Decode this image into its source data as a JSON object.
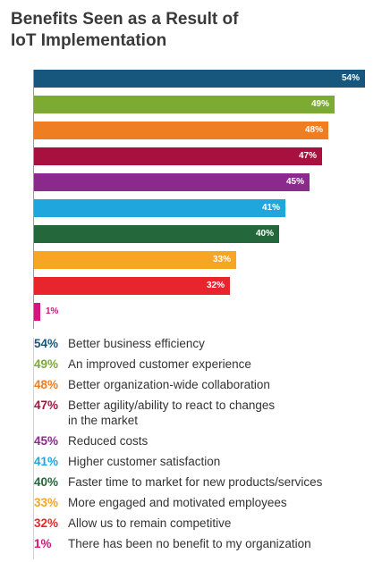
{
  "chart_data": {
    "type": "bar",
    "orientation": "horizontal",
    "title": "Benefits Seen as a Result of IoT Implementation",
    "title_lines": [
      "Benefits Seen as a Result of",
      "IoT Implementation"
    ],
    "xlim": [
      0,
      54
    ],
    "grid": false,
    "legend": "bottom",
    "categories": [
      "Better business efficiency",
      "An improved customer experience",
      "Better organization-wide collaboration",
      "Better agility/ability to react to changes in the market",
      "Reduced costs",
      "Higher customer satisfaction",
      "Faster time to market for new products/services",
      "More engaged and motivated employees",
      "Allow us to remain competitive",
      "There has been no benefit to my organization"
    ],
    "values": [
      54,
      49,
      48,
      47,
      45,
      41,
      40,
      33,
      32,
      1
    ],
    "labels": [
      "54%",
      "49%",
      "48%",
      "47%",
      "45%",
      "41%",
      "40%",
      "33%",
      "32%",
      "1%"
    ],
    "colors": [
      "#17577e",
      "#7dab31",
      "#ef7d22",
      "#a8113f",
      "#8a2a8c",
      "#1ea6dd",
      "#23673a",
      "#f6a623",
      "#e8252d",
      "#d4157e"
    ],
    "legend_lines": [
      [
        "Better business efficiency"
      ],
      [
        "An improved customer experience"
      ],
      [
        "Better organization-wide collaboration"
      ],
      [
        "Better agility/ability to react to changes",
        "in the market"
      ],
      [
        "Reduced costs"
      ],
      [
        "Higher customer satisfaction"
      ],
      [
        "Faster time to market for new products/services"
      ],
      [
        "More engaged and motivated employees"
      ],
      [
        "Allow us to remain competitive"
      ],
      [
        "There has been no benefit to my organization"
      ]
    ]
  }
}
